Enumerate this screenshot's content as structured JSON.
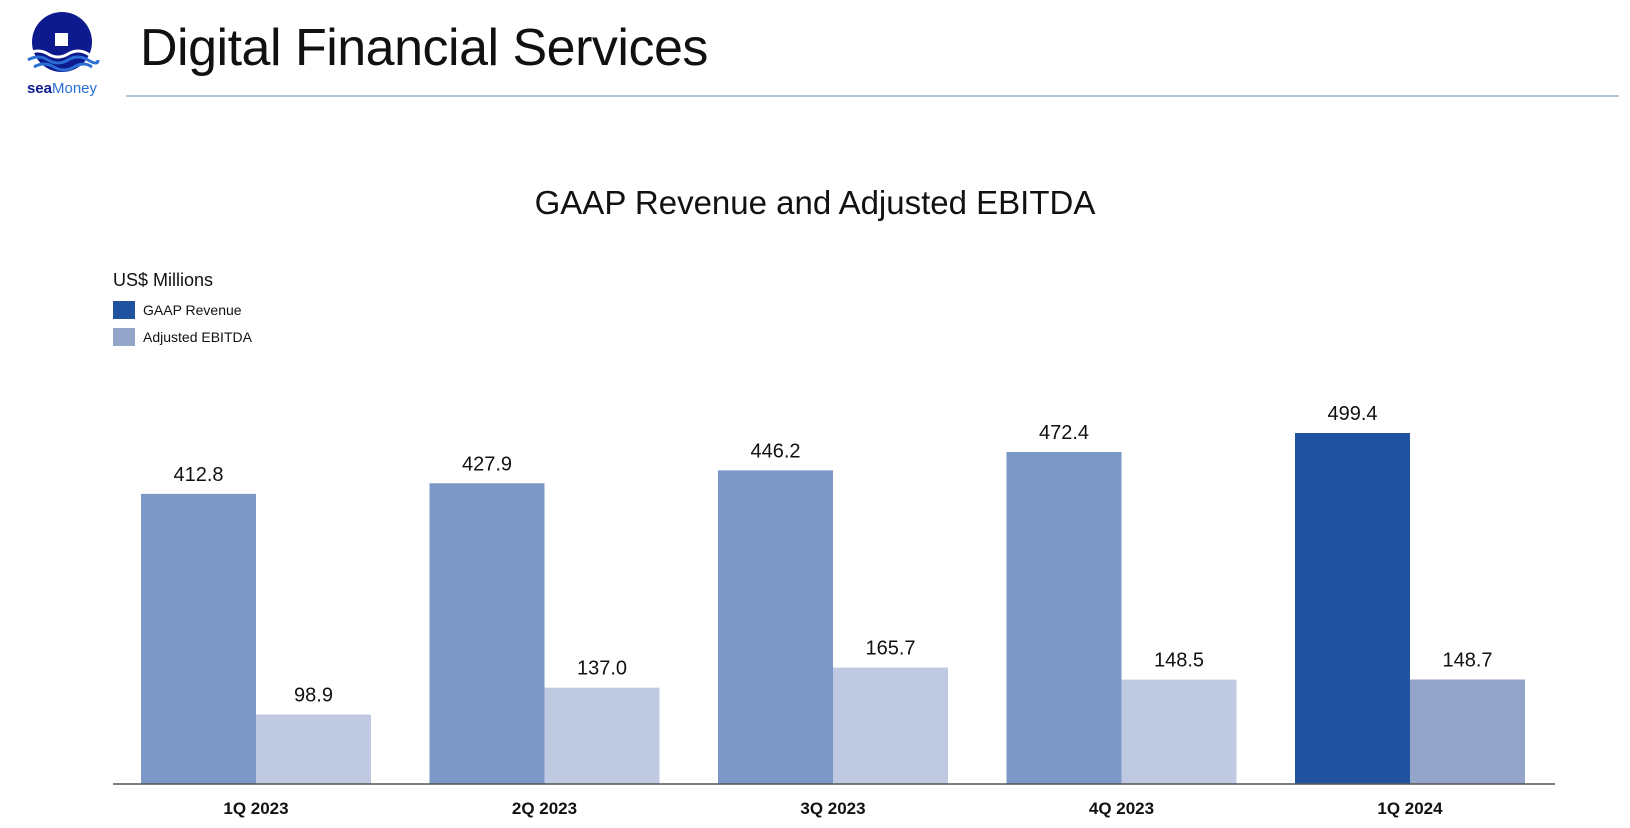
{
  "header": {
    "title": "Digital Financial Services",
    "logo": {
      "word_sea": "sea",
      "word_money": "Money"
    }
  },
  "colors": {
    "gaap_revenue": "#7b98c7",
    "gaap_revenue_highlight": "#2152a0",
    "adjusted_ebitda": "#bfcae2",
    "adjusted_ebitda_highlight": "#93a6c9",
    "legend_gaap": "#2152a0",
    "legend_ebitda": "#93a6c9",
    "axis": "#555555",
    "logo_navy": "#0c1a8e",
    "logo_blue": "#2b6fd6"
  },
  "chart_data": {
    "type": "bar",
    "title": "GAAP Revenue and Adjusted EBITDA",
    "unit_label": "US$ Millions",
    "categories": [
      "1Q 2023",
      "2Q 2023",
      "3Q 2023",
      "4Q 2023",
      "1Q 2024"
    ],
    "series": [
      {
        "name": "GAAP Revenue",
        "values": [
          412.8,
          427.9,
          446.2,
          472.4,
          499.4
        ]
      },
      {
        "name": "Adjusted EBITDA",
        "values": [
          98.9,
          137.0,
          165.7,
          148.5,
          148.7
        ]
      }
    ],
    "value_labels": [
      [
        "412.8",
        "427.9",
        "446.2",
        "472.4",
        "499.4"
      ],
      [
        "98.9",
        "137.0",
        "165.7",
        "148.5",
        "148.7"
      ]
    ],
    "highlight_category": "1Q 2024",
    "ylim": [
      0,
      499.4
    ],
    "legend": "top-left",
    "grid": false,
    "xlabel": "",
    "ylabel": ""
  }
}
